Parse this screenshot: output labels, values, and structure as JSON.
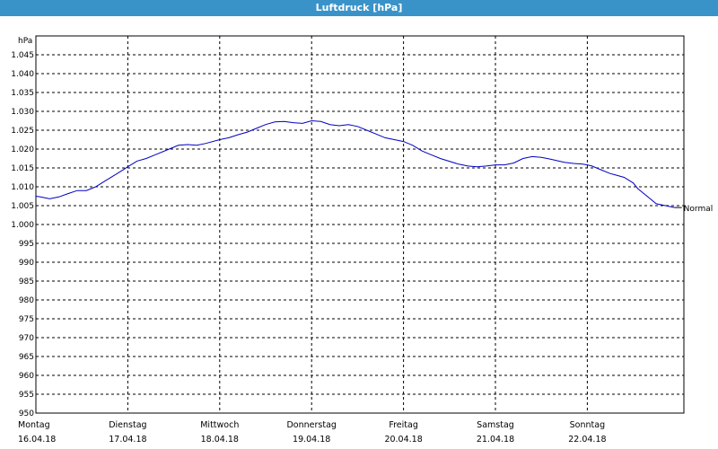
{
  "window": {
    "title": "Luftdruck [hPa]"
  },
  "chart_data": {
    "type": "line",
    "title": "Luftdruck [hPa]",
    "ylabel": "hPa",
    "ylim": [
      950,
      1050
    ],
    "yticks": [
      "950",
      "955",
      "960",
      "965",
      "970",
      "975",
      "980",
      "985",
      "990",
      "995",
      "1.000",
      "1.005",
      "1.010",
      "1.015",
      "1.020",
      "1.025",
      "1.030",
      "1.035",
      "1.040",
      "1.045"
    ],
    "xlim": [
      0,
      7
    ],
    "xticks": [
      {
        "day": "Montag",
        "date": "16.04.18"
      },
      {
        "day": "Dienstag",
        "date": "17.04.18"
      },
      {
        "day": "Mittwoch",
        "date": "18.04.18"
      },
      {
        "day": "Donnerstag",
        "date": "19.04.18"
      },
      {
        "day": "Freitag",
        "date": "20.04.18"
      },
      {
        "day": "Samstag",
        "date": "21.04.18"
      },
      {
        "day": "Sonntag",
        "date": "22.04.18"
      }
    ],
    "grid": true,
    "series": [
      {
        "name": "Normal",
        "color": "#0000c0",
        "x": [
          0,
          0.05,
          0.15,
          0.25,
          0.35,
          0.45,
          0.55,
          0.65,
          0.75,
          0.85,
          0.95,
          1.0,
          1.1,
          1.2,
          1.3,
          1.45,
          1.55,
          1.65,
          1.75,
          1.85,
          2.0,
          2.1,
          2.2,
          2.3,
          2.4,
          2.5,
          2.6,
          2.7,
          2.8,
          2.9,
          3.0,
          3.1,
          3.2,
          3.3,
          3.4,
          3.5,
          3.6,
          3.7,
          3.8,
          4.0,
          4.1,
          4.2,
          4.3,
          4.4,
          4.6,
          4.7,
          4.8,
          4.9,
          5.0,
          5.1,
          5.2,
          5.3,
          5.4,
          5.5,
          5.6,
          5.75,
          5.85,
          5.95,
          6.0,
          6.05,
          6.15,
          6.25,
          6.3,
          6.4,
          6.5,
          6.55,
          6.65,
          6.75,
          6.95
        ],
        "y": [
          1007.5,
          1007.3,
          1006.8,
          1007.3,
          1008.2,
          1009.0,
          1009.0,
          1010.0,
          1011.5,
          1013.0,
          1014.5,
          1015.3,
          1016.8,
          1017.5,
          1018.5,
          1020.0,
          1021.0,
          1021.2,
          1021.0,
          1021.5,
          1022.5,
          1023.0,
          1023.8,
          1024.5,
          1025.5,
          1026.5,
          1027.2,
          1027.3,
          1027.0,
          1026.8,
          1027.5,
          1027.3,
          1026.5,
          1026.2,
          1026.5,
          1026.0,
          1025.0,
          1024.0,
          1023.0,
          1022.0,
          1021.0,
          1019.5,
          1018.5,
          1017.5,
          1016.0,
          1015.5,
          1015.3,
          1015.5,
          1015.8,
          1015.8,
          1016.3,
          1017.5,
          1018.0,
          1017.8,
          1017.3,
          1016.5,
          1016.2,
          1016.0,
          1015.8,
          1015.5,
          1014.5,
          1013.5,
          1013.2,
          1012.5,
          1011.0,
          1009.5,
          1007.5,
          1005.5,
          1004.5
        ]
      }
    ]
  }
}
